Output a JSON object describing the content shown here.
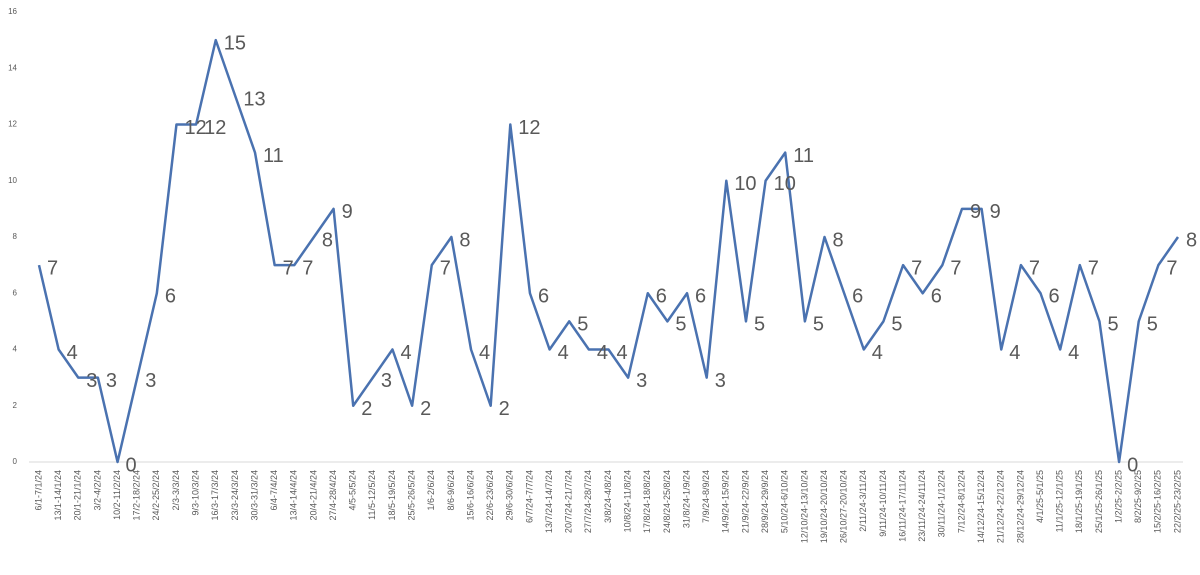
{
  "chart_data": {
    "type": "line",
    "categories": [
      "6/1-7/1/24",
      "13/1-14/1/24",
      "20/1-21/1/24",
      "3/2-4/2/24",
      "10/2-11/2/24",
      "17/2-18/2/24",
      "24/2-25/2/24",
      "2/3-3/3/24",
      "9/3-10/3/24",
      "16/3-17/3/24",
      "23/3-24/3/24",
      "30/3-31/3/24",
      "6/4-7/4/24",
      "13/4-14/4/24",
      "20/4-21/4/24",
      "27/4-28/4/24",
      "4/5-5/5/24",
      "11/5-12/5/24",
      "18/5-19/5/24",
      "25/5-26/5/24",
      "1/6-2/6/24",
      "8/6-9/6/24",
      "15/6-16/6/24",
      "22/6-23/6/24",
      "29/6-30/6/24",
      "6/7/24-7/7/24",
      "13/7/24-14/7/24",
      "20/7/24-21/7/24",
      "27/7/24-28/7/24",
      "3/8/24-4/8/24",
      "10/8/24-11/8/24",
      "17/8/24-18/8/24",
      "24/8/24-25/8/24",
      "31/8/24-1/9/24",
      "7/9/24-8/9/24",
      "14/9/24-15/9/24",
      "21/9/24-22/9/24",
      "28/9/24-29/9/24",
      "5/10/24-6/10/24",
      "12/10/24-13/10/24",
      "19/10/24-20/10/24",
      "26/10/27-20/10/24",
      "2/11/24-3/11/24",
      "9/11/24-10/11/24",
      "16/11/24-17/11/24",
      "23/11/24-24/11/24",
      "30/11/24-1/12/24",
      "7/12/24-8/12/24",
      "14/12/24-15/12/24",
      "21/12/24-22/12/24",
      "28/12/24-29/12/24",
      "4/1/25-5/1/25",
      "11/1/25-12/1/25",
      "18/1/25-19/1/25",
      "25/1/25-26/1/25",
      "1/2/25-2/2/25",
      "8/2/25-9/2/25",
      "15/2/25-16/2/25",
      "22/2/25-23/2/25"
    ],
    "values": [
      7,
      4,
      3,
      3,
      0,
      3,
      6,
      12,
      12,
      15,
      13,
      11,
      7,
      7,
      8,
      9,
      2,
      3,
      4,
      2,
      7,
      8,
      4,
      2,
      12,
      6,
      4,
      5,
      4,
      4,
      3,
      6,
      5,
      6,
      3,
      10,
      5,
      10,
      11,
      5,
      8,
      6,
      4,
      5,
      7,
      6,
      7,
      9,
      9,
      4,
      7,
      6,
      4,
      7,
      5,
      0,
      5,
      7,
      8
    ],
    "color": "#4a72b0",
    "ylim": [
      0,
      16
    ],
    "yticks": [
      0,
      2,
      4,
      6,
      8,
      10,
      12,
      14,
      16
    ],
    "grid": false
  }
}
